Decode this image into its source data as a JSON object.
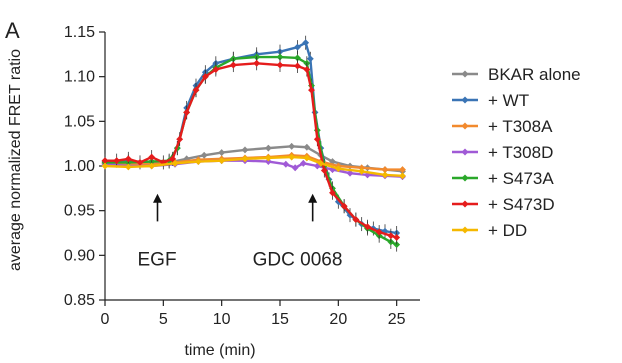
{
  "chart_data": {
    "type": "line",
    "panel_label": "A",
    "xlabel": "time (min)",
    "ylabel": "average normalized FRET ratio",
    "xlim": [
      0,
      27
    ],
    "ylim": [
      0.85,
      1.15
    ],
    "xticks": [
      0,
      5,
      10,
      15,
      20,
      25
    ],
    "yticks": [
      0.85,
      0.9,
      0.95,
      1.0,
      1.05,
      1.1,
      1.15
    ],
    "ytick_labels": [
      "0.85",
      "0.90",
      "0.95",
      "1.00",
      "1.05",
      "1.10",
      "1.15"
    ],
    "grid": false,
    "legend_position": "right",
    "annotations": [
      {
        "text": "EGF",
        "x": 4.5,
        "arrow_tip_y": 0.969,
        "arrow_tail_y": 0.938
      },
      {
        "text": "GDC 0068",
        "x": 17.8,
        "arrow_tip_y": 0.969,
        "arrow_tail_y": 0.938
      }
    ],
    "series": [
      {
        "name": "BKAR alone",
        "color": "#8a8a8a",
        "marker": "diamond",
        "points": [
          [
            0,
            1.003
          ],
          [
            2,
            1.003
          ],
          [
            4,
            1.002
          ],
          [
            5.5,
            1.004
          ],
          [
            7,
            1.008
          ],
          [
            8.5,
            1.012
          ],
          [
            10,
            1.015
          ],
          [
            12,
            1.018
          ],
          [
            14,
            1.02
          ],
          [
            16,
            1.022
          ],
          [
            17.3,
            1.021
          ],
          [
            18.5,
            1.012
          ],
          [
            19.5,
            1.005
          ],
          [
            21,
            1.0
          ],
          [
            22.5,
            0.998
          ],
          [
            24,
            0.996
          ],
          [
            25.5,
            0.994
          ]
        ]
      },
      {
        "name": "+ WT",
        "color": "#3a74b5",
        "marker": "diamond",
        "points": [
          [
            0,
            1.005
          ],
          [
            2,
            1.005
          ],
          [
            4,
            1.005
          ],
          [
            5.5,
            1.005
          ],
          [
            6.2,
            1.02
          ],
          [
            7,
            1.065
          ],
          [
            7.8,
            1.09
          ],
          [
            8.6,
            1.105
          ],
          [
            9.5,
            1.115
          ],
          [
            11,
            1.12
          ],
          [
            13,
            1.125
          ],
          [
            15,
            1.128
          ],
          [
            16.5,
            1.133
          ],
          [
            17.2,
            1.138
          ],
          [
            17.6,
            1.12
          ],
          [
            18,
            1.06
          ],
          [
            18.5,
            1.02
          ],
          [
            19.2,
            0.985
          ],
          [
            20,
            0.96
          ],
          [
            21,
            0.945
          ],
          [
            22,
            0.935
          ],
          [
            23,
            0.93
          ],
          [
            24,
            0.927
          ],
          [
            25,
            0.925
          ]
        ]
      },
      {
        "name": "+ T308A",
        "color": "#f28a2e",
        "marker": "diamond",
        "points": [
          [
            0,
            1.003
          ],
          [
            2,
            1.002
          ],
          [
            4,
            1.002
          ],
          [
            6,
            1.004
          ],
          [
            8,
            1.007
          ],
          [
            10,
            1.008
          ],
          [
            12,
            1.009
          ],
          [
            14,
            1.01
          ],
          [
            16,
            1.012
          ],
          [
            17.3,
            1.011
          ],
          [
            18.5,
            1.005
          ],
          [
            20,
            1.0
          ],
          [
            22,
            0.998
          ],
          [
            24,
            0.996
          ],
          [
            25.5,
            0.996
          ]
        ]
      },
      {
        "name": "+ T308D",
        "color": "#a05ad6",
        "marker": "diamond",
        "points": [
          [
            0,
            1.002
          ],
          [
            2,
            1.0
          ],
          [
            4,
            1.0
          ],
          [
            6,
            1.002
          ],
          [
            8,
            1.005
          ],
          [
            10,
            1.006
          ],
          [
            12,
            1.006
          ],
          [
            14,
            1.005
          ],
          [
            15.5,
            1.002
          ],
          [
            16.3,
            0.998
          ],
          [
            17,
            1.003
          ],
          [
            18.2,
            1.0
          ],
          [
            19.5,
            0.996
          ],
          [
            21,
            0.992
          ],
          [
            22.5,
            0.99
          ],
          [
            24,
            0.989
          ],
          [
            25.5,
            0.988
          ]
        ]
      },
      {
        "name": "+ S473A",
        "color": "#2aa82a",
        "marker": "diamond",
        "points": [
          [
            0,
            1.004
          ],
          [
            2,
            1.004
          ],
          [
            4,
            1.005
          ],
          [
            5.5,
            1.006
          ],
          [
            6.2,
            1.02
          ],
          [
            7,
            1.06
          ],
          [
            7.8,
            1.085
          ],
          [
            8.6,
            1.1
          ],
          [
            9.5,
            1.11
          ],
          [
            11,
            1.12
          ],
          [
            13,
            1.122
          ],
          [
            15,
            1.122
          ],
          [
            16.5,
            1.121
          ],
          [
            17.3,
            1.115
          ],
          [
            17.7,
            1.09
          ],
          [
            18.2,
            1.04
          ],
          [
            18.8,
            1.0
          ],
          [
            19.5,
            0.975
          ],
          [
            20.5,
            0.955
          ],
          [
            21.5,
            0.94
          ],
          [
            22.5,
            0.93
          ],
          [
            23.5,
            0.922
          ],
          [
            24.5,
            0.915
          ],
          [
            25,
            0.912
          ]
        ]
      },
      {
        "name": "+ S473D",
        "color": "#e51c1c",
        "marker": "diamond",
        "points": [
          [
            0,
            1.006
          ],
          [
            1,
            1.006
          ],
          [
            2,
            1.008
          ],
          [
            3,
            1.004
          ],
          [
            4,
            1.01
          ],
          [
            5,
            1.004
          ],
          [
            5.8,
            1.008
          ],
          [
            6.4,
            1.03
          ],
          [
            7,
            1.06
          ],
          [
            7.8,
            1.085
          ],
          [
            8.6,
            1.1
          ],
          [
            9.5,
            1.108
          ],
          [
            11,
            1.113
          ],
          [
            13,
            1.115
          ],
          [
            15,
            1.113
          ],
          [
            16.5,
            1.112
          ],
          [
            17.3,
            1.108
          ],
          [
            17.7,
            1.085
          ],
          [
            18.2,
            1.03
          ],
          [
            18.8,
            0.995
          ],
          [
            19.5,
            0.97
          ],
          [
            20.5,
            0.955
          ],
          [
            21.5,
            0.94
          ],
          [
            22.5,
            0.932
          ],
          [
            23.5,
            0.926
          ],
          [
            24.5,
            0.922
          ],
          [
            25,
            0.92
          ]
        ]
      },
      {
        "name": "+ DD",
        "color": "#f5b800",
        "marker": "diamond",
        "points": [
          [
            0,
            1.0
          ],
          [
            2,
            0.999
          ],
          [
            4,
            1.0
          ],
          [
            6,
            1.003
          ],
          [
            8,
            1.005
          ],
          [
            10,
            1.006
          ],
          [
            12,
            1.008
          ],
          [
            14,
            1.009
          ],
          [
            16,
            1.01
          ],
          [
            17.3,
            1.009
          ],
          [
            18.5,
            1.003
          ],
          [
            20,
            0.997
          ],
          [
            22,
            0.994
          ],
          [
            24,
            0.99
          ],
          [
            25.5,
            0.989
          ]
        ]
      }
    ]
  }
}
